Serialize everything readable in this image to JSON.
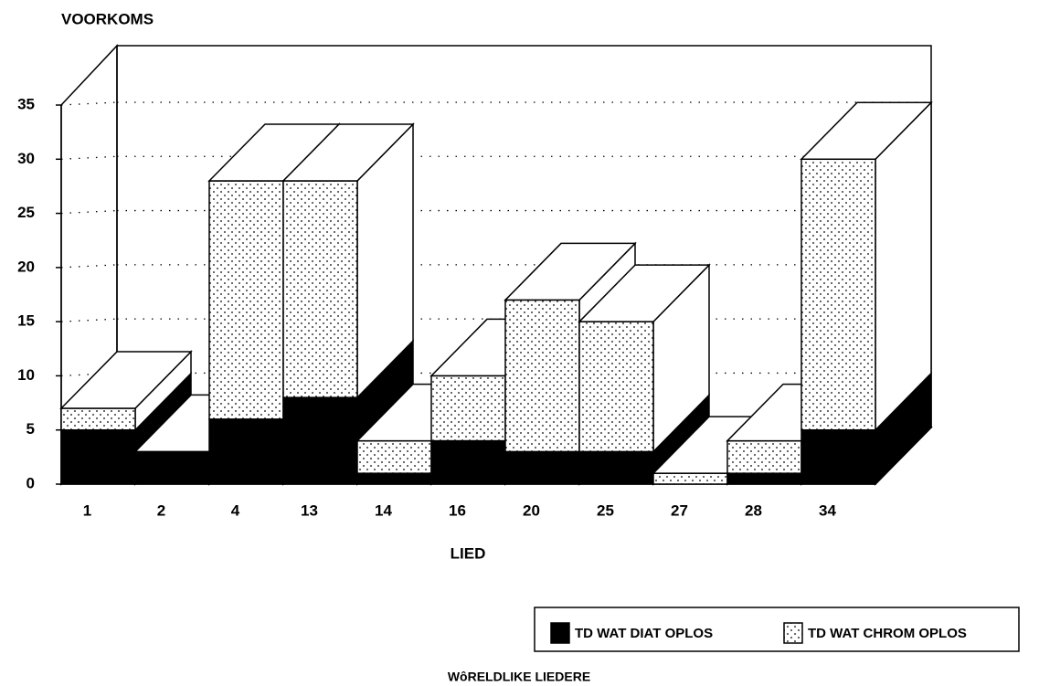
{
  "chart_data": {
    "type": "bar3d_stacked",
    "title": "WôRELDLIKE LIEDERE",
    "y_label": "VOORKOMS",
    "x_label": "LIED",
    "categories": [
      "1",
      "2",
      "4",
      "13",
      "14",
      "16",
      "20",
      "25",
      "27",
      "28",
      "34"
    ],
    "series": [
      {
        "name": "TD WAT DIAT OPLOS",
        "color": "#000000",
        "values": [
          5,
          3,
          6,
          8,
          1,
          4,
          3,
          3,
          0,
          1,
          5
        ]
      },
      {
        "name": "TD WAT CHROM OPLOS",
        "color": "#ffffff",
        "pattern": "dots",
        "values": [
          2,
          0,
          22,
          20,
          3,
          6,
          14,
          12,
          1,
          3,
          25
        ]
      }
    ],
    "ylim": [
      0,
      35
    ],
    "yticks": [
      0,
      5,
      10,
      15,
      20,
      25,
      30,
      35
    ],
    "grid": true,
    "legend": "bottom-right"
  }
}
